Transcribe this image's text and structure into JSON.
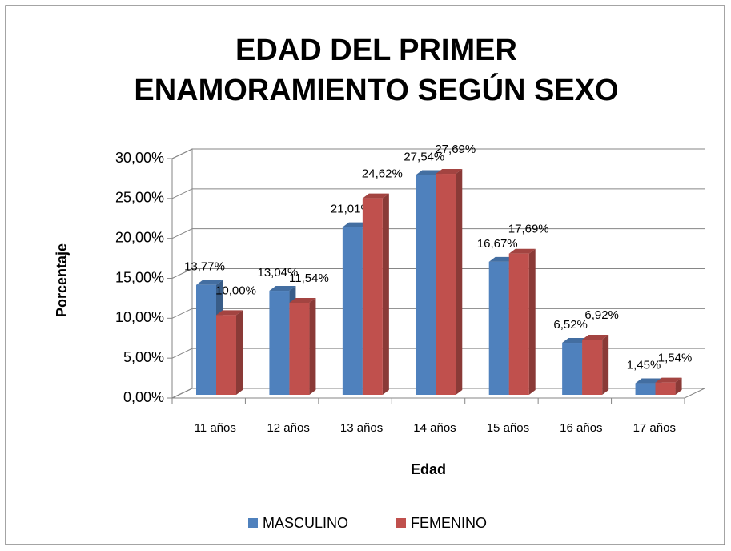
{
  "chart_data": {
    "type": "bar3d",
    "title": "EDAD DEL PRIMER ENAMORAMIENTO SEGÚN SEXO",
    "ylabel": "Porcentaje",
    "xlabel": "Edad",
    "categories": [
      "11 años",
      "12 años",
      "13 años",
      "14 años",
      "15 años",
      "16 años",
      "17 años"
    ],
    "series": [
      {
        "name": "MASCULINO",
        "color": "#4f81bd",
        "values": [
          13.77,
          13.04,
          21.01,
          27.54,
          16.67,
          6.52,
          1.45
        ],
        "value_labels": [
          "13,77%",
          "13,04%",
          "21,01%",
          "27,54%",
          "16,67%",
          "6,52%",
          "1,45%"
        ]
      },
      {
        "name": "FEMENINO",
        "color": "#c0504d",
        "values": [
          10.0,
          11.54,
          24.62,
          27.69,
          17.69,
          6.92,
          1.54
        ],
        "value_labels": [
          "10,00%",
          "11,54%",
          "24,62%",
          "27,69%",
          "17,69%",
          "6,92%",
          "1,54%"
        ]
      }
    ],
    "ylim": [
      0,
      30
    ],
    "yticks": [
      {
        "value": 0,
        "label": "0,00%"
      },
      {
        "value": 5,
        "label": "5,00%"
      },
      {
        "value": 10,
        "label": "10,00%"
      },
      {
        "value": 15,
        "label": "15,00%"
      },
      {
        "value": 20,
        "label": "20,00%"
      },
      {
        "value": 25,
        "label": "25,00%"
      },
      {
        "value": 30,
        "label": "30,00%"
      }
    ],
    "grid": true,
    "legend": "bottom"
  }
}
